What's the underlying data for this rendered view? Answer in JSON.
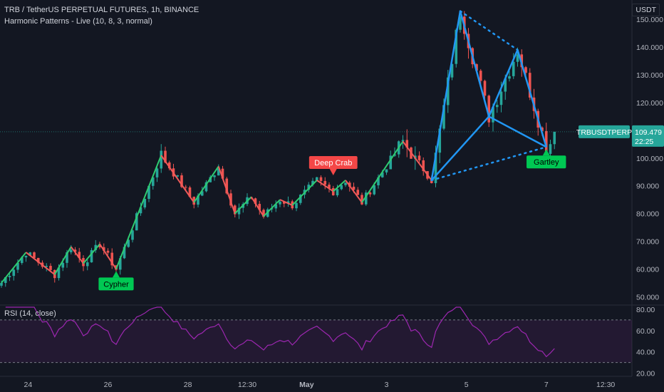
{
  "header": {
    "title": "TRB / TetherUS PERPETUAL FUTURES, 1h, BINANCE",
    "indicator": "Harmonic Patterns - Live (10, 8, 3, normal)",
    "currency": "USDT"
  },
  "rsi": {
    "label": "RSI (14, close)",
    "ticks": [
      "80.00",
      "60.00",
      "40.00",
      "20.00"
    ],
    "upper_band": 70,
    "lower_band": 30
  },
  "price_badge": {
    "symbol": "TRBUSDTPERP",
    "price": "109.479",
    "countdown": "22:25"
  },
  "colors": {
    "background": "#131722",
    "up": "#26a69a",
    "down": "#ef5350",
    "zigzag_up": "#2ecc71",
    "zigzag_down": "#f05a5a",
    "pattern": "#2196f3",
    "rsi_line": "#9c27b0",
    "label_green": "#00c853",
    "label_red": "#f44747",
    "badge": "#26a69a"
  },
  "chart_data": [
    {
      "type": "candlestick",
      "title": "TRB / TetherUS PERPETUAL FUTURES, 1h, BINANCE",
      "ylim": [
        47,
        157
      ],
      "y_ticks": [
        "150.000",
        "140.000",
        "130.000",
        "120.000",
        "110.000",
        "100.000",
        "90.000",
        "80.000",
        "70.000",
        "60.000",
        "50.000"
      ],
      "x_ticks": [
        "24",
        "26",
        "28",
        "12:30",
        "May",
        "3",
        "5",
        "7",
        "12:30"
      ],
      "last_price": 109.479,
      "zigzag": [
        {
          "t": 0,
          "p": 55
        },
        {
          "t": 6,
          "p": 66
        },
        {
          "t": 13,
          "p": 58
        },
        {
          "t": 17,
          "p": 68
        },
        {
          "t": 20,
          "p": 62
        },
        {
          "t": 24,
          "p": 69
        },
        {
          "t": 28,
          "p": 60
        },
        {
          "t": 39,
          "p": 101
        },
        {
          "t": 47,
          "p": 84
        },
        {
          "t": 53,
          "p": 97
        },
        {
          "t": 57,
          "p": 80
        },
        {
          "t": 61,
          "p": 86
        },
        {
          "t": 64,
          "p": 79
        },
        {
          "t": 68,
          "p": 85
        },
        {
          "t": 71,
          "p": 83
        },
        {
          "t": 77,
          "p": 92
        },
        {
          "t": 81,
          "p": 88
        },
        {
          "t": 84,
          "p": 92
        },
        {
          "t": 88,
          "p": 84
        },
        {
          "t": 98,
          "p": 106
        },
        {
          "t": 105,
          "p": 92
        }
      ],
      "harmonic_pattern": {
        "points": [
          {
            "t": 105,
            "p": 92
          },
          {
            "t": 112,
            "p": 153
          },
          {
            "t": 119,
            "p": 115
          },
          {
            "t": 126,
            "p": 139
          },
          {
            "t": 133,
            "p": 104
          }
        ],
        "label": "Gartley"
      },
      "pattern_labels": [
        {
          "text": "Cypher",
          "t": 28,
          "p": 60,
          "position": "below"
        },
        {
          "text": "Deep Crab",
          "t": 81,
          "p": 93,
          "position": "above"
        },
        {
          "text": "Gartley",
          "t": 133,
          "p": 104,
          "position": "below"
        }
      ],
      "candle_count": 136
    },
    {
      "type": "line",
      "title": "RSI (14, close)",
      "ylim": [
        17,
        84
      ],
      "y_ticks": [
        "80.00",
        "60.00",
        "40.00",
        "20.00"
      ],
      "bands": [
        70,
        30
      ]
    }
  ]
}
